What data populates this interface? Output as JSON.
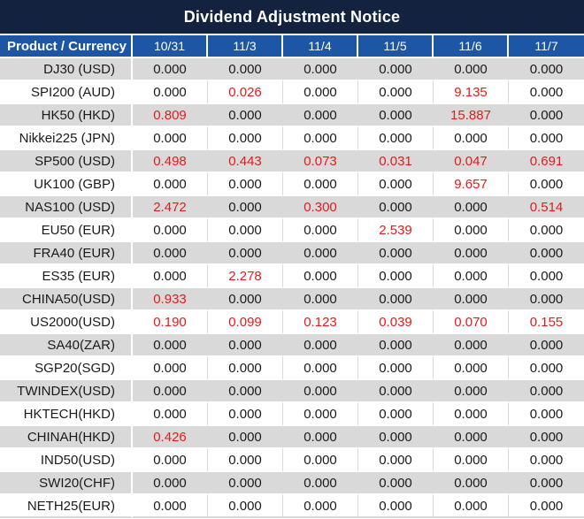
{
  "title": "Dividend Adjustment Notice",
  "chart_data": {
    "type": "table",
    "title": "Dividend Adjustment Notice",
    "columns": [
      "Product / Currency",
      "10/31",
      "11/3",
      "11/4",
      "11/5",
      "11/6",
      "11/7"
    ],
    "rows": [
      {
        "product": "DJ30 (USD)",
        "values": [
          "0.000",
          "0.000",
          "0.000",
          "0.000",
          "0.000",
          "0.000"
        ],
        "red_columns": []
      },
      {
        "product": "SPI200 (AUD)",
        "values": [
          "0.000",
          "0.026",
          "0.000",
          "0.000",
          "9.135",
          "0.000"
        ],
        "red_columns": [
          1,
          4
        ]
      },
      {
        "product": "HK50 (HKD)",
        "values": [
          "0.809",
          "0.000",
          "0.000",
          "0.000",
          "15.887",
          "0.000"
        ],
        "red_columns": [
          0,
          4
        ]
      },
      {
        "product": "Nikkei225 (JPN)",
        "values": [
          "0.000",
          "0.000",
          "0.000",
          "0.000",
          "0.000",
          "0.000"
        ],
        "red_columns": []
      },
      {
        "product": "SP500 (USD)",
        "values": [
          "0.498",
          "0.443",
          "0.073",
          "0.031",
          "0.047",
          "0.691"
        ],
        "red_columns": [
          0,
          1,
          2,
          3,
          4,
          5
        ]
      },
      {
        "product": "UK100 (GBP)",
        "values": [
          "0.000",
          "0.000",
          "0.000",
          "0.000",
          "9.657",
          "0.000"
        ],
        "red_columns": [
          4
        ]
      },
      {
        "product": "NAS100 (USD)",
        "values": [
          "2.472",
          "0.000",
          "0.300",
          "0.000",
          "0.000",
          "0.514"
        ],
        "red_columns": [
          0,
          2,
          5
        ]
      },
      {
        "product": "EU50 (EUR)",
        "values": [
          "0.000",
          "0.000",
          "0.000",
          "2.539",
          "0.000",
          "0.000"
        ],
        "red_columns": [
          3
        ]
      },
      {
        "product": "FRA40 (EUR)",
        "values": [
          "0.000",
          "0.000",
          "0.000",
          "0.000",
          "0.000",
          "0.000"
        ],
        "red_columns": []
      },
      {
        "product": "ES35 (EUR)",
        "values": [
          "0.000",
          "2.278",
          "0.000",
          "0.000",
          "0.000",
          "0.000"
        ],
        "red_columns": [
          1
        ]
      },
      {
        "product": "CHINA50(USD)",
        "values": [
          "0.933",
          "0.000",
          "0.000",
          "0.000",
          "0.000",
          "0.000"
        ],
        "red_columns": [
          0
        ]
      },
      {
        "product": "US2000(USD)",
        "values": [
          "0.190",
          "0.099",
          "0.123",
          "0.039",
          "0.070",
          "0.155"
        ],
        "red_columns": [
          0,
          1,
          2,
          3,
          4,
          5
        ]
      },
      {
        "product": "SA40(ZAR)",
        "values": [
          "0.000",
          "0.000",
          "0.000",
          "0.000",
          "0.000",
          "0.000"
        ],
        "red_columns": []
      },
      {
        "product": "SGP20(SGD)",
        "values": [
          "0.000",
          "0.000",
          "0.000",
          "0.000",
          "0.000",
          "0.000"
        ],
        "red_columns": []
      },
      {
        "product": "TWINDEX(USD)",
        "values": [
          "0.000",
          "0.000",
          "0.000",
          "0.000",
          "0.000",
          "0.000"
        ],
        "red_columns": []
      },
      {
        "product": "HKTECH(HKD)",
        "values": [
          "0.000",
          "0.000",
          "0.000",
          "0.000",
          "0.000",
          "0.000"
        ],
        "red_columns": []
      },
      {
        "product": "CHINAH(HKD)",
        "values": [
          "0.426",
          "0.000",
          "0.000",
          "0.000",
          "0.000",
          "0.000"
        ],
        "red_columns": [
          0
        ]
      },
      {
        "product": "IND50(USD)",
        "values": [
          "0.000",
          "0.000",
          "0.000",
          "0.000",
          "0.000",
          "0.000"
        ],
        "red_columns": []
      },
      {
        "product": "SWI20(CHF)",
        "values": [
          "0.000",
          "0.000",
          "0.000",
          "0.000",
          "0.000",
          "0.000"
        ],
        "red_columns": []
      },
      {
        "product": "NETH25(EUR)",
        "values": [
          "0.000",
          "0.000",
          "0.000",
          "0.000",
          "0.000",
          "0.000"
        ],
        "red_columns": []
      }
    ]
  },
  "colors": {
    "title_bar_bg": "#13223f",
    "header_bg": "#1d56a5",
    "row_alt_bg": "#d9d9d9",
    "highlight_red": "#e51a1a",
    "text_black": "#1a1a1a",
    "header_text": "#ffffff"
  }
}
